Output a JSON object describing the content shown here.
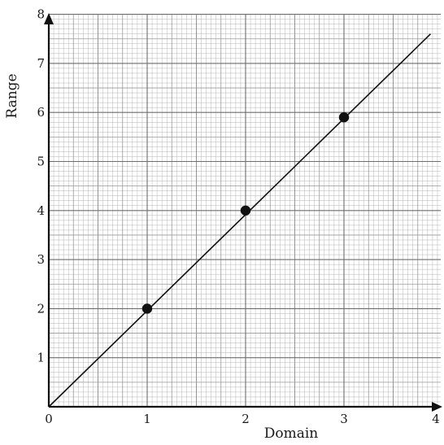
{
  "chart_data": {
    "type": "scatter",
    "xlabel": "Domain",
    "ylabel": "Range",
    "xlim": [
      0,
      4
    ],
    "ylim": [
      0,
      8
    ],
    "x_ticks": [
      "0",
      "1",
      "2",
      "3",
      "4"
    ],
    "y_ticks": [
      "1",
      "2",
      "3",
      "4",
      "5",
      "6",
      "7",
      "8"
    ],
    "grid": true,
    "points": [
      {
        "x": 1,
        "y": 2
      },
      {
        "x": 2,
        "y": 4
      },
      {
        "x": 3,
        "y": 5.9
      }
    ],
    "line": {
      "x": [
        0,
        3.88
      ],
      "y": [
        0,
        7.6
      ]
    }
  }
}
